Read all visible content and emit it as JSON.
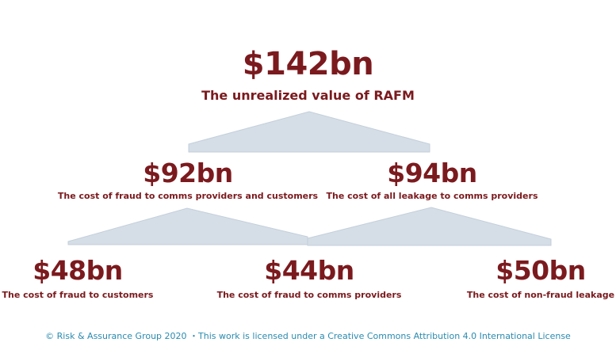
{
  "root": {
    "amount": "$142bn",
    "label": "The unrealized value of RAFM"
  },
  "level2": [
    {
      "amount": "$92bn",
      "label": "The cost of fraud to comms providers and customers"
    },
    {
      "amount": "$94bn",
      "label": "The cost of all leakage to comms providers"
    }
  ],
  "level3": [
    {
      "amount": "$48bn",
      "label": "The cost of fraud to customers"
    },
    {
      "amount": "$44bn",
      "label": "The cost of fraud to comms providers"
    },
    {
      "amount": "$50bn",
      "label": "The cost of non-fraud leakage"
    }
  ],
  "footer": "© Risk & Assurance Group 2020 ・This work is licensed under a Creative Commons Attribution 4.0 International License",
  "colors": {
    "text": "#7b1a1e",
    "connector": "#d5dee7",
    "connector_edge": "#c4cfda",
    "footer": "#2a8bb0"
  }
}
